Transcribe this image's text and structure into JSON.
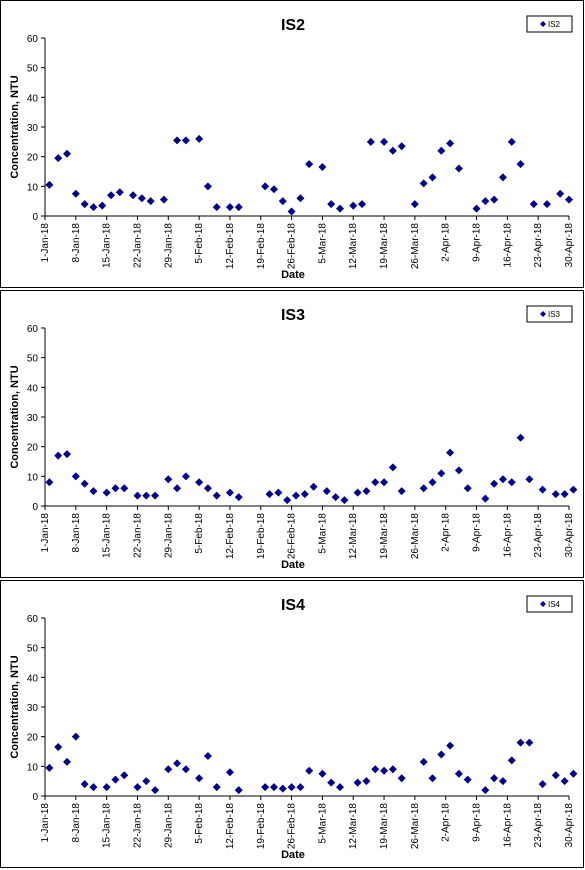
{
  "chart_data": [
    {
      "type": "scatter",
      "title": "IS2",
      "xlabel": "Date",
      "ylabel": "Concentration, NTU",
      "ylim": [
        0,
        60
      ],
      "yticks": [
        0,
        10,
        20,
        30,
        40,
        50,
        60
      ],
      "xlim": [
        "2018-01-01",
        "2018-04-30"
      ],
      "xticks": [
        "1-Jan-18",
        "8-Jan-18",
        "15-Jan-18",
        "22-Jan-18",
        "29-Jan-18",
        "5-Feb-18",
        "12-Feb-18",
        "19-Feb-18",
        "26-Feb-18",
        "5-Mar-18",
        "12-Mar-18",
        "19-Mar-18",
        "26-Mar-18",
        "2-Apr-18",
        "9-Apr-18",
        "16-Apr-18",
        "23-Apr-18",
        "30-Apr-18"
      ],
      "legend": "top-right",
      "marker_color": "#00008B",
      "series": [
        {
          "name": "IS2",
          "points": [
            [
              "2018-01-02",
              10.5
            ],
            [
              "2018-01-04",
              19.5
            ],
            [
              "2018-01-06",
              21
            ],
            [
              "2018-01-08",
              7.5
            ],
            [
              "2018-01-10",
              4
            ],
            [
              "2018-01-12",
              3
            ],
            [
              "2018-01-14",
              3.5
            ],
            [
              "2018-01-16",
              7
            ],
            [
              "2018-01-18",
              8
            ],
            [
              "2018-01-21",
              7
            ],
            [
              "2018-01-23",
              6
            ],
            [
              "2018-01-25",
              5
            ],
            [
              "2018-01-28",
              5.5
            ],
            [
              "2018-01-31",
              25.5
            ],
            [
              "2018-02-02",
              25.5
            ],
            [
              "2018-02-05",
              26
            ],
            [
              "2018-02-07",
              10
            ],
            [
              "2018-02-09",
              3
            ],
            [
              "2018-02-12",
              3
            ],
            [
              "2018-02-14",
              3
            ],
            [
              "2018-02-20",
              10
            ],
            [
              "2018-02-22",
              9
            ],
            [
              "2018-02-24",
              5
            ],
            [
              "2018-02-26",
              1.5
            ],
            [
              "2018-02-28",
              6
            ],
            [
              "2018-03-02",
              17.5
            ],
            [
              "2018-03-05",
              16.5
            ],
            [
              "2018-03-07",
              4
            ],
            [
              "2018-03-09",
              2.5
            ],
            [
              "2018-03-12",
              3.5
            ],
            [
              "2018-03-14",
              4
            ],
            [
              "2018-03-16",
              25
            ],
            [
              "2018-03-19",
              25
            ],
            [
              "2018-03-21",
              22
            ],
            [
              "2018-03-23",
              23.5
            ],
            [
              "2018-03-26",
              4
            ],
            [
              "2018-03-28",
              11
            ],
            [
              "2018-03-30",
              13
            ],
            [
              "2018-04-01",
              22
            ],
            [
              "2018-04-03",
              24.5
            ],
            [
              "2018-04-05",
              16
            ],
            [
              "2018-04-09",
              2.5
            ],
            [
              "2018-04-11",
              5
            ],
            [
              "2018-04-13",
              5.5
            ],
            [
              "2018-04-15",
              13
            ],
            [
              "2018-04-17",
              25
            ],
            [
              "2018-04-19",
              17.5
            ],
            [
              "2018-04-22",
              4
            ],
            [
              "2018-04-25",
              4
            ],
            [
              "2018-04-28",
              7.5
            ],
            [
              "2018-04-30",
              5.5
            ]
          ]
        }
      ]
    },
    {
      "type": "scatter",
      "title": "IS3",
      "xlabel": "Date",
      "ylabel": "Concentration, NTU",
      "ylim": [
        0,
        60
      ],
      "yticks": [
        0,
        10,
        20,
        30,
        40,
        50,
        60
      ],
      "xlim": [
        "2018-01-01",
        "2018-04-30"
      ],
      "xticks": [
        "1-Jan-18",
        "8-Jan-18",
        "15-Jan-18",
        "22-Jan-18",
        "29-Jan-18",
        "5-Feb-18",
        "12-Feb-18",
        "19-Feb-18",
        "26-Feb-18",
        "5-Mar-18",
        "12-Mar-18",
        "19-Mar-18",
        "26-Mar-18",
        "2-Apr-18",
        "9-Apr-18",
        "16-Apr-18",
        "23-Apr-18",
        "30-Apr-18"
      ],
      "legend": "top-right",
      "marker_color": "#00008B",
      "series": [
        {
          "name": "IS3",
          "points": [
            [
              "2018-01-02",
              8
            ],
            [
              "2018-01-04",
              17
            ],
            [
              "2018-01-06",
              17.5
            ],
            [
              "2018-01-08",
              10
            ],
            [
              "2018-01-10",
              7.5
            ],
            [
              "2018-01-12",
              5
            ],
            [
              "2018-01-15",
              4.5
            ],
            [
              "2018-01-17",
              6
            ],
            [
              "2018-01-19",
              6
            ],
            [
              "2018-01-22",
              3.5
            ],
            [
              "2018-01-24",
              3.5
            ],
            [
              "2018-01-26",
              3.5
            ],
            [
              "2018-01-29",
              9
            ],
            [
              "2018-01-31",
              6
            ],
            [
              "2018-02-02",
              10
            ],
            [
              "2018-02-05",
              8
            ],
            [
              "2018-02-07",
              6
            ],
            [
              "2018-02-09",
              3.5
            ],
            [
              "2018-02-12",
              4.5
            ],
            [
              "2018-02-14",
              3
            ],
            [
              "2018-02-21",
              4
            ],
            [
              "2018-02-23",
              4.5
            ],
            [
              "2018-02-25",
              2
            ],
            [
              "2018-02-27",
              3.5
            ],
            [
              "2018-03-01",
              4
            ],
            [
              "2018-03-03",
              6.5
            ],
            [
              "2018-03-06",
              5
            ],
            [
              "2018-03-08",
              3
            ],
            [
              "2018-03-10",
              2
            ],
            [
              "2018-03-13",
              4.5
            ],
            [
              "2018-03-15",
              5
            ],
            [
              "2018-03-17",
              8
            ],
            [
              "2018-03-19",
              8
            ],
            [
              "2018-03-21",
              13
            ],
            [
              "2018-03-23",
              5
            ],
            [
              "2018-03-28",
              6
            ],
            [
              "2018-03-30",
              8
            ],
            [
              "2018-04-01",
              11
            ],
            [
              "2018-04-03",
              18
            ],
            [
              "2018-04-05",
              12
            ],
            [
              "2018-04-07",
              6
            ],
            [
              "2018-04-11",
              2.5
            ],
            [
              "2018-04-13",
              7.5
            ],
            [
              "2018-04-15",
              9
            ],
            [
              "2018-04-17",
              8
            ],
            [
              "2018-04-19",
              23
            ],
            [
              "2018-04-21",
              9
            ],
            [
              "2018-04-24",
              5.5
            ],
            [
              "2018-04-27",
              4
            ],
            [
              "2018-04-29",
              4
            ],
            [
              "2018-05-01",
              5.5
            ]
          ]
        }
      ]
    },
    {
      "type": "scatter",
      "title": "IS4",
      "xlabel": "Date",
      "ylabel": "Concentration, NTU",
      "ylim": [
        0,
        60
      ],
      "yticks": [
        0,
        10,
        20,
        30,
        40,
        50,
        60
      ],
      "xlim": [
        "2018-01-01",
        "2018-04-30"
      ],
      "xticks": [
        "1-Jan-18",
        "8-Jan-18",
        "15-Jan-18",
        "22-Jan-18",
        "29-Jan-18",
        "5-Feb-18",
        "12-Feb-18",
        "19-Feb-18",
        "26-Feb-18",
        "5-Mar-18",
        "12-Mar-18",
        "19-Mar-18",
        "26-Mar-18",
        "2-Apr-18",
        "9-Apr-18",
        "16-Apr-18",
        "23-Apr-18",
        "30-Apr-18"
      ],
      "legend": "top-right",
      "marker_color": "#00008B",
      "series": [
        {
          "name": "IS4",
          "points": [
            [
              "2018-01-02",
              9.5
            ],
            [
              "2018-01-04",
              16.5
            ],
            [
              "2018-01-06",
              11.5
            ],
            [
              "2018-01-08",
              20
            ],
            [
              "2018-01-10",
              4
            ],
            [
              "2018-01-12",
              3
            ],
            [
              "2018-01-15",
              3
            ],
            [
              "2018-01-17",
              5.5
            ],
            [
              "2018-01-19",
              7
            ],
            [
              "2018-01-22",
              3
            ],
            [
              "2018-01-24",
              5
            ],
            [
              "2018-01-26",
              2
            ],
            [
              "2018-01-29",
              9
            ],
            [
              "2018-01-31",
              11
            ],
            [
              "2018-02-02",
              9
            ],
            [
              "2018-02-05",
              6
            ],
            [
              "2018-02-07",
              13.5
            ],
            [
              "2018-02-09",
              3
            ],
            [
              "2018-02-12",
              8
            ],
            [
              "2018-02-14",
              2
            ],
            [
              "2018-02-20",
              3
            ],
            [
              "2018-02-22",
              3
            ],
            [
              "2018-02-24",
              2.5
            ],
            [
              "2018-02-26",
              3
            ],
            [
              "2018-02-28",
              3
            ],
            [
              "2018-03-02",
              8.5
            ],
            [
              "2018-03-05",
              7.5
            ],
            [
              "2018-03-07",
              4.5
            ],
            [
              "2018-03-09",
              3
            ],
            [
              "2018-03-13",
              4.5
            ],
            [
              "2018-03-15",
              5
            ],
            [
              "2018-03-17",
              9
            ],
            [
              "2018-03-19",
              8.5
            ],
            [
              "2018-03-21",
              9
            ],
            [
              "2018-03-23",
              6
            ],
            [
              "2018-03-28",
              11.5
            ],
            [
              "2018-03-30",
              6
            ],
            [
              "2018-04-01",
              14
            ],
            [
              "2018-04-03",
              17
            ],
            [
              "2018-04-05",
              7.5
            ],
            [
              "2018-04-07",
              5.5
            ],
            [
              "2018-04-11",
              2
            ],
            [
              "2018-04-13",
              6
            ],
            [
              "2018-04-15",
              5
            ],
            [
              "2018-04-17",
              12
            ],
            [
              "2018-04-19",
              18
            ],
            [
              "2018-04-21",
              18
            ],
            [
              "2018-04-24",
              4
            ],
            [
              "2018-04-27",
              7
            ],
            [
              "2018-04-29",
              5
            ],
            [
              "2018-05-01",
              7.5
            ]
          ]
        }
      ]
    }
  ]
}
